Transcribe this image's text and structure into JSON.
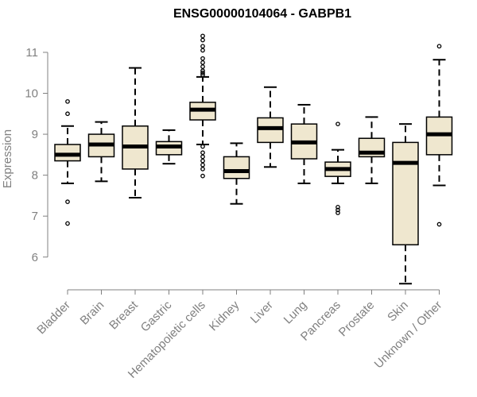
{
  "chart_data": {
    "type": "boxplot",
    "title": "ENSG00000104064 - GABPB1",
    "xlabel": "",
    "ylabel": "Expression",
    "ylim": [
      5.2,
      11.6
    ],
    "yticks": [
      6,
      7,
      8,
      9,
      10,
      11
    ],
    "grid": false,
    "colors": {
      "box_fill": "#efe7cf",
      "box_stroke": "#000000",
      "axis": "#808080",
      "text": "#808080"
    },
    "categories": [
      "Bladder",
      "Brain",
      "Breast",
      "Gastric",
      "Hematopoietic cells",
      "Kidney",
      "Liver",
      "Lung",
      "Pancreas",
      "Prostate",
      "Skin",
      "Unknown / Other"
    ],
    "series": [
      {
        "name": "Bladder",
        "whisker_low": 7.8,
        "q1": 8.35,
        "median": 8.5,
        "q3": 8.75,
        "whisker_high": 9.2,
        "outliers": [
          9.8,
          9.5,
          7.35,
          6.82
        ]
      },
      {
        "name": "Brain",
        "whisker_low": 7.85,
        "q1": 8.45,
        "median": 8.75,
        "q3": 9.0,
        "whisker_high": 9.3,
        "outliers": []
      },
      {
        "name": "Breast",
        "whisker_low": 7.45,
        "q1": 8.15,
        "median": 8.7,
        "q3": 9.2,
        "whisker_high": 10.62,
        "outliers": []
      },
      {
        "name": "Gastric",
        "whisker_low": 8.28,
        "q1": 8.5,
        "median": 8.7,
        "q3": 8.82,
        "whisker_high": 9.1,
        "outliers": []
      },
      {
        "name": "Hematopoietic cells",
        "whisker_low": 8.75,
        "q1": 9.35,
        "median": 9.6,
        "q3": 9.78,
        "whisker_high": 10.4,
        "outliers": [
          11.4,
          11.3,
          11.15,
          11.05,
          10.85,
          10.75,
          10.65,
          10.55,
          10.5,
          10.45,
          8.7,
          8.55,
          8.45,
          8.35,
          8.25,
          8.15,
          7.98
        ]
      },
      {
        "name": "Kidney",
        "whisker_low": 7.3,
        "q1": 7.92,
        "median": 8.1,
        "q3": 8.45,
        "whisker_high": 8.78,
        "outliers": []
      },
      {
        "name": "Liver",
        "whisker_low": 8.2,
        "q1": 8.8,
        "median": 9.15,
        "q3": 9.4,
        "whisker_high": 10.15,
        "outliers": []
      },
      {
        "name": "Lung",
        "whisker_low": 7.8,
        "q1": 8.4,
        "median": 8.8,
        "q3": 9.25,
        "whisker_high": 9.72,
        "outliers": []
      },
      {
        "name": "Pancreas",
        "whisker_low": 7.8,
        "q1": 7.97,
        "median": 8.15,
        "q3": 8.32,
        "whisker_high": 8.62,
        "outliers": [
          9.25,
          7.22,
          7.15,
          7.08
        ]
      },
      {
        "name": "Prostate",
        "whisker_low": 7.8,
        "q1": 8.45,
        "median": 8.55,
        "q3": 8.9,
        "whisker_high": 9.42,
        "outliers": []
      },
      {
        "name": "Skin",
        "whisker_low": 5.35,
        "q1": 6.3,
        "median": 8.3,
        "q3": 8.8,
        "whisker_high": 9.25,
        "outliers": []
      },
      {
        "name": "Unknown / Other",
        "whisker_low": 7.75,
        "q1": 8.5,
        "median": 9.0,
        "q3": 9.42,
        "whisker_high": 10.82,
        "outliers": [
          11.15,
          6.8
        ]
      }
    ]
  }
}
